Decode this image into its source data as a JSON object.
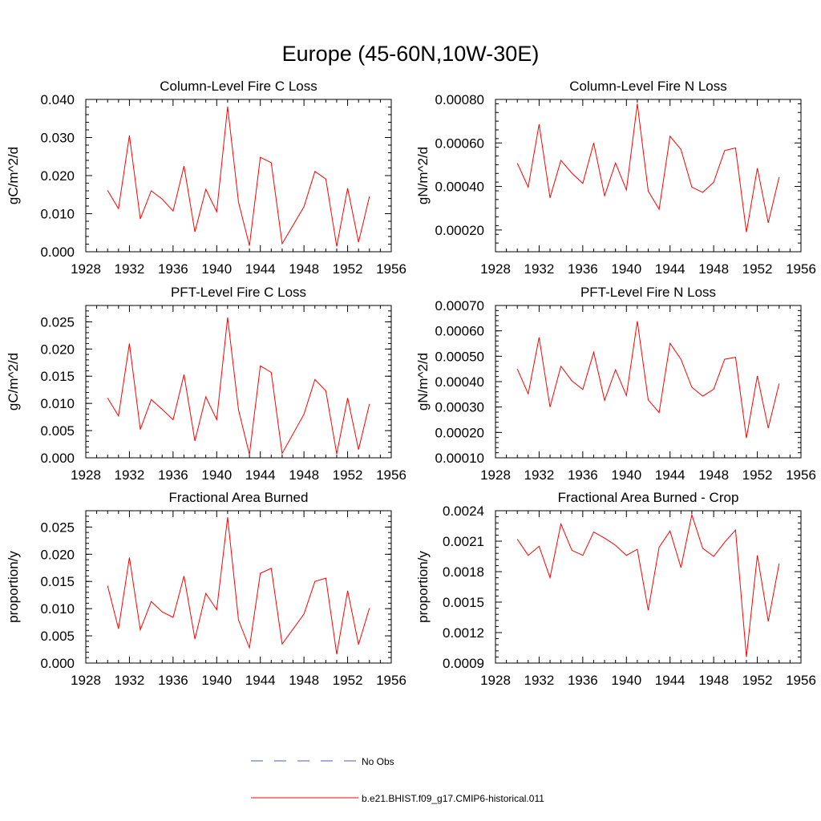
{
  "figure_title": "Europe (45-60N,10W-30E)",
  "legend": {
    "obs_label": "No Obs",
    "model_label": "b.e21.BHIST.f09_g17.CMIP6-historical.011",
    "obs_color": "#4a5fa8",
    "model_color": "#ff0000"
  },
  "chart_data": [
    {
      "type": "line",
      "title": "Column-Level Fire C Loss",
      "ylabel": "gC/m^2/d",
      "xlim": [
        1928,
        1956
      ],
      "xticks": [
        1928,
        1932,
        1936,
        1940,
        1944,
        1948,
        1952,
        1956
      ],
      "ylim": [
        0.0,
        0.04
      ],
      "yticks": [
        0.0,
        0.01,
        0.02,
        0.03,
        0.04
      ],
      "ytick_labels": [
        "0.000",
        "0.010",
        "0.020",
        "0.030",
        "0.040"
      ],
      "x": [
        1930,
        1931,
        1932,
        1933,
        1934,
        1935,
        1936,
        1937,
        1938,
        1939,
        1940,
        1941,
        1942,
        1943,
        1944,
        1945,
        1946,
        1948,
        1949,
        1950,
        1951,
        1952,
        1953,
        1954
      ],
      "series": [
        {
          "color": "#ff0000",
          "values": [
            0.0161,
            0.0113,
            0.0305,
            0.0086,
            0.016,
            0.0138,
            0.0107,
            0.0225,
            0.0052,
            0.0164,
            0.0105,
            0.0381,
            0.013,
            0.0016,
            0.0248,
            0.0234,
            0.0021,
            0.0118,
            0.0211,
            0.0191,
            0.0014,
            0.0167,
            0.0025,
            0.0145
          ]
        }
      ]
    },
    {
      "type": "line",
      "title": "Column-Level Fire N Loss",
      "ylabel": "gN/m^2/d",
      "xlim": [
        1928,
        1956
      ],
      "xticks": [
        1928,
        1932,
        1936,
        1940,
        1944,
        1948,
        1952,
        1956
      ],
      "ylim": [
        0.0001,
        0.0008
      ],
      "yticks": [
        0.0002,
        0.0004,
        0.0006,
        0.0008
      ],
      "ytick_labels": [
        "0.00020",
        "0.00040",
        "0.00060",
        "0.00080"
      ],
      "x": [
        1930,
        1931,
        1932,
        1933,
        1934,
        1935,
        1936,
        1937,
        1938,
        1939,
        1940,
        1941,
        1942,
        1943,
        1944,
        1945,
        1946,
        1947,
        1948,
        1949,
        1950,
        1951,
        1952,
        1953,
        1954
      ],
      "series": [
        {
          "color": "#ff0000",
          "values": [
            0.000507,
            0.000397,
            0.000686,
            0.000348,
            0.00052,
            0.000461,
            0.000414,
            0.0006,
            0.000357,
            0.000508,
            0.000384,
            0.00078,
            0.000379,
            0.000295,
            0.000631,
            0.00057,
            0.000397,
            0.000373,
            0.000419,
            0.000565,
            0.000577,
            0.00019,
            0.000484,
            0.000233,
            0.000443
          ]
        }
      ]
    },
    {
      "type": "line",
      "title": "PFT-Level Fire C Loss",
      "ylabel": "gC/m^2/d",
      "xlim": [
        1928,
        1956
      ],
      "xticks": [
        1928,
        1932,
        1936,
        1940,
        1944,
        1948,
        1952,
        1956
      ],
      "ylim": [
        0.0,
        0.028
      ],
      "yticks": [
        0.0,
        0.005,
        0.01,
        0.015,
        0.02,
        0.025
      ],
      "ytick_labels": [
        "0.000",
        "0.005",
        "0.010",
        "0.015",
        "0.020",
        "0.025"
      ],
      "x": [
        1930,
        1931,
        1932,
        1933,
        1934,
        1935,
        1936,
        1937,
        1938,
        1939,
        1940,
        1941,
        1942,
        1943,
        1944,
        1945,
        1946,
        1948,
        1949,
        1950,
        1951,
        1952,
        1953,
        1954
      ],
      "series": [
        {
          "color": "#ff0000",
          "values": [
            0.011,
            0.0077,
            0.021,
            0.0052,
            0.0107,
            0.0089,
            0.007,
            0.0153,
            0.0031,
            0.0112,
            0.007,
            0.0258,
            0.0088,
            0.0006,
            0.0169,
            0.0157,
            0.0008,
            0.008,
            0.0144,
            0.0123,
            0.0007,
            0.011,
            0.0015,
            0.0099
          ]
        }
      ]
    },
    {
      "type": "line",
      "title": "PFT-Level Fire N Loss",
      "ylabel": "gN/m^2/d",
      "xlim": [
        1928,
        1956
      ],
      "xticks": [
        1928,
        1932,
        1936,
        1940,
        1944,
        1948,
        1952,
        1956
      ],
      "ylim": [
        0.0001,
        0.0007
      ],
      "yticks": [
        0.0001,
        0.0002,
        0.0003,
        0.0004,
        0.0005,
        0.0006,
        0.0007
      ],
      "ytick_labels": [
        "0.00010",
        "0.00020",
        "0.00030",
        "0.00040",
        "0.00050",
        "0.00060",
        "0.00070"
      ],
      "x": [
        1930,
        1931,
        1932,
        1933,
        1934,
        1935,
        1936,
        1937,
        1938,
        1939,
        1940,
        1941,
        1942,
        1943,
        1944,
        1945,
        1946,
        1947,
        1948,
        1949,
        1950,
        1951,
        1952,
        1953,
        1954
      ],
      "series": [
        {
          "color": "#ff0000",
          "values": [
            0.00045,
            0.000352,
            0.000574,
            0.0003,
            0.000461,
            0.000403,
            0.000369,
            0.000516,
            0.000326,
            0.000447,
            0.000345,
            0.000638,
            0.000328,
            0.000278,
            0.000551,
            0.000488,
            0.000378,
            0.000343,
            0.00037,
            0.000488,
            0.000496,
            0.000178,
            0.000422,
            0.000217,
            0.000393
          ]
        }
      ]
    },
    {
      "type": "line",
      "title": "Fractional Area Burned",
      "ylabel": "proportion/y",
      "xlim": [
        1928,
        1956
      ],
      "xticks": [
        1928,
        1932,
        1936,
        1940,
        1944,
        1948,
        1952,
        1956
      ],
      "ylim": [
        0.0,
        0.028
      ],
      "yticks": [
        0.0,
        0.005,
        0.01,
        0.015,
        0.02,
        0.025
      ],
      "ytick_labels": [
        "0.000",
        "0.005",
        "0.010",
        "0.015",
        "0.020",
        "0.025"
      ],
      "x": [
        1930,
        1931,
        1932,
        1933,
        1934,
        1935,
        1936,
        1937,
        1938,
        1939,
        1940,
        1941,
        1942,
        1943,
        1944,
        1945,
        1946,
        1948,
        1949,
        1950,
        1951,
        1952,
        1953,
        1954
      ],
      "series": [
        {
          "color": "#ff0000",
          "values": [
            0.0142,
            0.0063,
            0.0194,
            0.0061,
            0.0113,
            0.0094,
            0.0084,
            0.016,
            0.0044,
            0.0128,
            0.0098,
            0.0268,
            0.0079,
            0.0028,
            0.0165,
            0.0174,
            0.0035,
            0.009,
            0.015,
            0.0156,
            0.0016,
            0.0133,
            0.0034,
            0.0101
          ]
        }
      ]
    },
    {
      "type": "line",
      "title": "Fractional Area Burned - Crop",
      "ylabel": "proportion/y",
      "xlim": [
        1928,
        1956
      ],
      "xticks": [
        1928,
        1932,
        1936,
        1940,
        1944,
        1948,
        1952,
        1956
      ],
      "ylim": [
        0.0009,
        0.0024
      ],
      "yticks": [
        0.0009,
        0.0012,
        0.0015,
        0.0018,
        0.0021,
        0.0024
      ],
      "ytick_labels": [
        "0.0009",
        "0.0012",
        "0.0015",
        "0.0018",
        "0.0021",
        "0.0024"
      ],
      "x": [
        1930,
        1931,
        1932,
        1933,
        1934,
        1935,
        1936,
        1937,
        1938,
        1939,
        1940,
        1941,
        1942,
        1943,
        1944,
        1945,
        1946,
        1947,
        1948,
        1949,
        1950,
        1951,
        1952,
        1953,
        1954
      ],
      "series": [
        {
          "color": "#ff0000",
          "values": [
            0.00212,
            0.00196,
            0.00205,
            0.00174,
            0.00227,
            0.00201,
            0.00196,
            0.00219,
            0.00213,
            0.00206,
            0.00196,
            0.00202,
            0.00142,
            0.00204,
            0.0022,
            0.00184,
            0.00236,
            0.00203,
            0.00195,
            0.00209,
            0.00221,
            0.00096,
            0.00196,
            0.00131,
            0.00188
          ]
        }
      ]
    }
  ]
}
